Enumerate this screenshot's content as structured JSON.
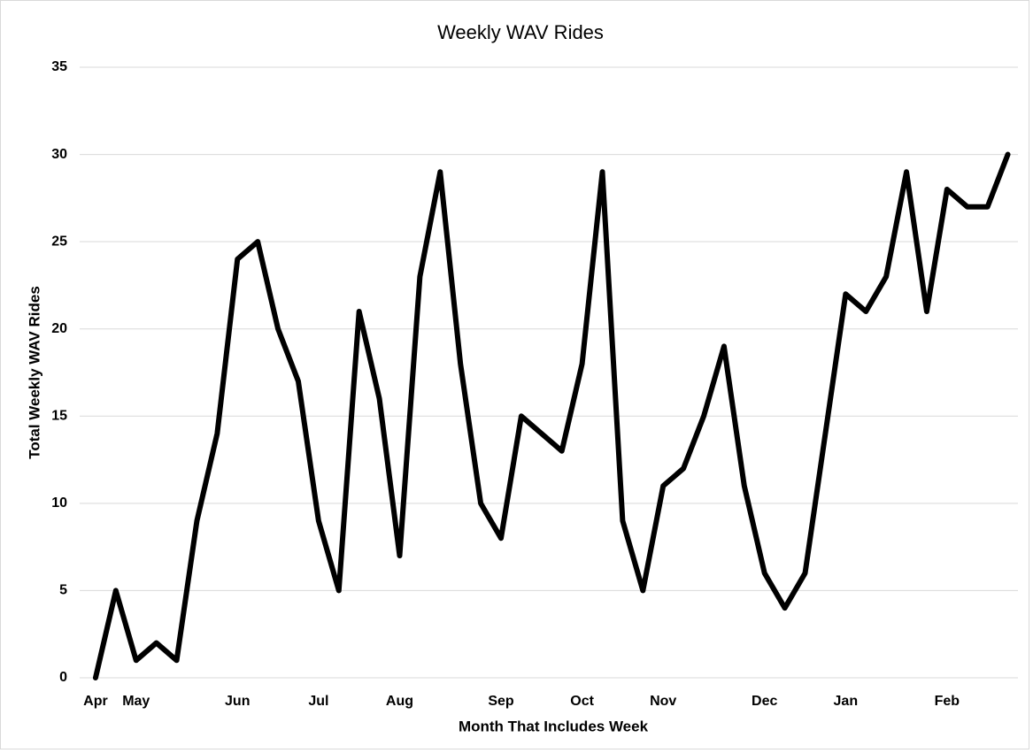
{
  "chart_data": {
    "type": "line",
    "title": "Weekly WAV Rides",
    "x_label": "Month That Includes Week",
    "y_label": "Total Weekly WAV Rides",
    "categories": [
      "Apr",
      null,
      "May",
      null,
      null,
      null,
      null,
      "Jun",
      null,
      null,
      null,
      "Jul",
      null,
      null,
      null,
      "Aug",
      null,
      null,
      null,
      null,
      "Sep",
      null,
      null,
      null,
      "Oct",
      null,
      null,
      null,
      "Nov",
      null,
      null,
      null,
      null,
      "Dec",
      null,
      null,
      null,
      "Jan",
      null,
      null,
      null,
      null,
      "Feb",
      null,
      null,
      null
    ],
    "series": [
      {
        "name": "Weekly WAV Rides",
        "color": "#000000",
        "values": [
          0,
          5,
          1,
          2,
          1,
          9,
          14,
          24,
          25,
          20,
          17,
          9,
          5,
          21,
          16,
          7,
          23,
          29,
          18,
          10,
          8,
          15,
          14,
          13,
          18,
          29,
          9,
          5,
          11,
          12,
          15,
          19,
          11,
          6,
          4,
          6,
          14,
          22,
          21,
          23,
          29,
          21,
          28,
          27,
          27,
          30
        ]
      }
    ],
    "ylim": [
      0,
      35
    ],
    "yticks": [
      0,
      5,
      10,
      15,
      20,
      25,
      30,
      35
    ],
    "grid": true
  }
}
